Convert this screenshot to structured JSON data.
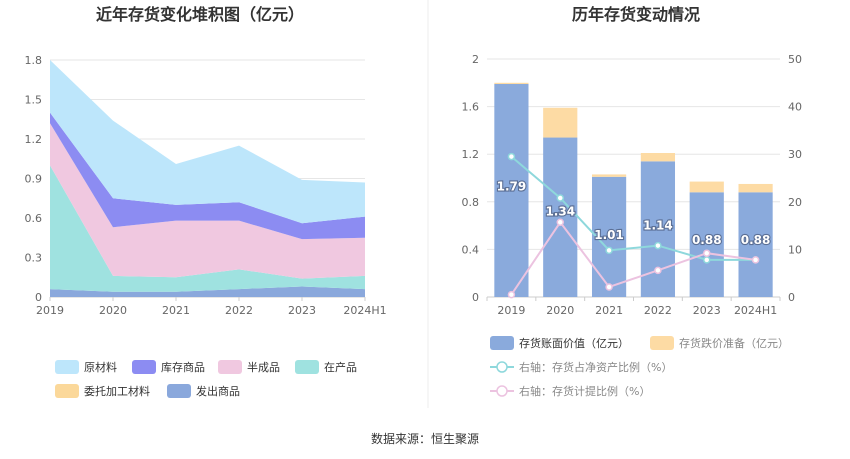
{
  "source_text": "数据来源：恒生聚源",
  "chart_data": [
    {
      "type": "area",
      "title": "近年存货变化堆积图（亿元）",
      "categories": [
        "2019",
        "2020",
        "2021",
        "2022",
        "2023",
        "2024H1"
      ],
      "ylim": [
        0,
        1.8
      ],
      "y_ticks": [
        "0",
        "0.3",
        "0.6",
        "0.9",
        "1.2",
        "1.5",
        "1.8"
      ],
      "y_tick_values": [
        0,
        0.3,
        0.6,
        0.9,
        1.2,
        1.5,
        1.8
      ],
      "stacked": true,
      "grid": true,
      "legend_position": "bottom",
      "series": [
        {
          "name": "发出商品",
          "color": "#8aa8dc",
          "values": [
            0.06,
            0.04,
            0.04,
            0.06,
            0.08,
            0.06
          ]
        },
        {
          "name": "在产品",
          "color": "#9fe2e0",
          "values": [
            0.94,
            0.12,
            0.11,
            0.15,
            0.06,
            0.1
          ]
        },
        {
          "name": "半成品",
          "color": "#f0c8e0",
          "values": [
            0.32,
            0.37,
            0.43,
            0.37,
            0.3,
            0.29
          ]
        },
        {
          "name": "库存商品",
          "color": "#8c8cf2",
          "values": [
            0.08,
            0.22,
            0.12,
            0.14,
            0.12,
            0.16
          ]
        },
        {
          "name": "原材料",
          "color": "#bde6fb",
          "values": [
            0.4,
            0.59,
            0.31,
            0.43,
            0.33,
            0.26
          ]
        },
        {
          "name": "委托加工材料",
          "color": "#fbd89a",
          "values": [
            0,
            0,
            0,
            0,
            0,
            0
          ]
        }
      ],
      "legend_order": [
        "原材料",
        "库存商品",
        "半成品",
        "在产品",
        "委托加工材料",
        "发出商品"
      ]
    },
    {
      "type": "bar",
      "title": "历年存货变动情况",
      "categories": [
        "2019",
        "2020",
        "2021",
        "2022",
        "2023",
        "2024H1"
      ],
      "ylim": [
        0,
        2
      ],
      "y_ticks": [
        "0",
        "0.4",
        "0.8",
        "1.2",
        "1.6",
        "2"
      ],
      "y_tick_values": [
        0,
        0.4,
        0.8,
        1.2,
        1.6,
        2
      ],
      "y2lim": [
        0,
        50
      ],
      "y2_ticks": [
        "0",
        "10",
        "20",
        "30",
        "40",
        "50"
      ],
      "y2_tick_values": [
        0,
        10,
        20,
        30,
        40,
        50
      ],
      "stacked": true,
      "grid": true,
      "legend_position": "bottom",
      "series": [
        {
          "name": "存货账面价值（亿元）",
          "color": "#8aaadc",
          "values": [
            1.79,
            1.34,
            1.01,
            1.14,
            0.88,
            0.88
          ],
          "labels": [
            "1.79",
            "1.34",
            "1.01",
            "1.14",
            "0.88",
            "0.88"
          ]
        },
        {
          "name": "存货跌价准备（亿元）",
          "color": "#fddba4",
          "values": [
            0.01,
            0.25,
            0.02,
            0.07,
            0.09,
            0.07
          ]
        },
        {
          "name": "右轴：存货占净资产比例（%）",
          "color": "#8ed8dc",
          "axis": "right",
          "type": "line",
          "values": [
            29.5,
            20.8,
            9.8,
            10.8,
            7.8,
            7.8
          ]
        },
        {
          "name": "右轴：存货计提比例（%）",
          "color": "#ecc3e0",
          "axis": "right",
          "type": "line",
          "values": [
            0.5,
            15.7,
            2.1,
            5.6,
            9.2,
            7.8
          ]
        }
      ]
    }
  ]
}
